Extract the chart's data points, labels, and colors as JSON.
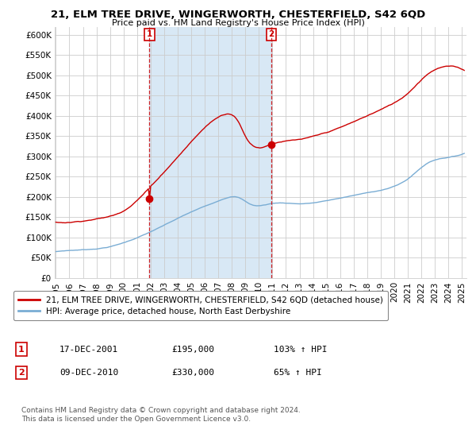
{
  "title": "21, ELM TREE DRIVE, WINGERWORTH, CHESTERFIELD, S42 6QD",
  "subtitle": "Price paid vs. HM Land Registry's House Price Index (HPI)",
  "ylim": [
    0,
    620000
  ],
  "yticks": [
    0,
    50000,
    100000,
    150000,
    200000,
    250000,
    300000,
    350000,
    400000,
    450000,
    500000,
    550000,
    600000
  ],
  "ytick_labels": [
    "£0",
    "£50K",
    "£100K",
    "£150K",
    "£200K",
    "£250K",
    "£300K",
    "£350K",
    "£400K",
    "£450K",
    "£500K",
    "£550K",
    "£600K"
  ],
  "hpi_color": "#7AADD4",
  "price_color": "#CC0000",
  "shade_color": "#D8E8F5",
  "sale1_price": 195000,
  "sale2_price": 330000,
  "sale1_year": 2001,
  "sale1_month": 12,
  "sale2_year": 2010,
  "sale2_month": 12,
  "legend_line1": "21, ELM TREE DRIVE, WINGERWORTH, CHESTERFIELD, S42 6QD (detached house)",
  "legend_line2": "HPI: Average price, detached house, North East Derbyshire",
  "table_row1_num": "1",
  "table_row1_date": "17-DEC-2001",
  "table_row1_price": "£195,000",
  "table_row1_hpi": "103% ↑ HPI",
  "table_row2_num": "2",
  "table_row2_date": "09-DEC-2010",
  "table_row2_price": "£330,000",
  "table_row2_hpi": "65% ↑ HPI",
  "footer": "Contains HM Land Registry data © Crown copyright and database right 2024.\nThis data is licensed under the Open Government Licence v3.0.",
  "background_color": "#ffffff",
  "grid_color": "#cccccc"
}
